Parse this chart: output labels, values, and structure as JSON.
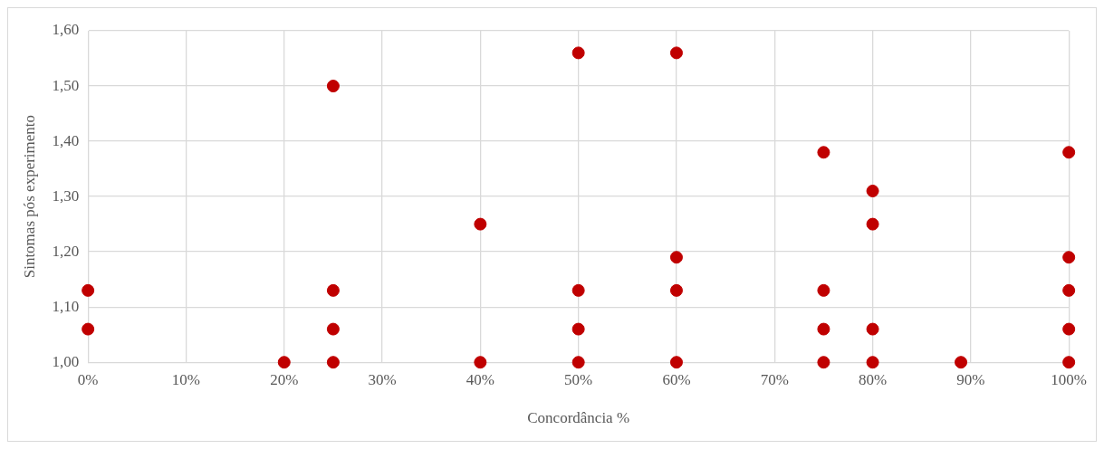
{
  "chart_data": {
    "type": "scatter",
    "xlabel": "Concordância %",
    "ylabel": "Sintomas pós experimento",
    "x": [
      0,
      0,
      20,
      25,
      25,
      25,
      25,
      40,
      40,
      50,
      50,
      50,
      50,
      60,
      60,
      60,
      60,
      75,
      75,
      75,
      75,
      80,
      80,
      80,
      80,
      89,
      100,
      100,
      100,
      100,
      100
    ],
    "series": [
      {
        "color": "#c00000",
        "values": [
          1.13,
          1.06,
          1.0,
          1.5,
          1.13,
          1.06,
          1.0,
          1.25,
          1.0,
          1.56,
          1.13,
          1.06,
          1.0,
          1.56,
          1.19,
          1.13,
          1.0,
          1.38,
          1.13,
          1.06,
          1.0,
          1.31,
          1.25,
          1.06,
          1.0,
          1.0,
          1.38,
          1.19,
          1.13,
          1.06,
          1.0
        ]
      }
    ],
    "xlim": [
      0,
      100
    ],
    "xticks": [
      {
        "value": 0,
        "label": "0%"
      },
      {
        "value": 10,
        "label": "10%"
      },
      {
        "value": 20,
        "label": "20%"
      },
      {
        "value": 30,
        "label": "30%"
      },
      {
        "value": 40,
        "label": "40%"
      },
      {
        "value": 50,
        "label": "50%"
      },
      {
        "value": 60,
        "label": "60%"
      },
      {
        "value": 70,
        "label": "70%"
      },
      {
        "value": 80,
        "label": "80%"
      },
      {
        "value": 90,
        "label": "90%"
      },
      {
        "value": 100,
        "label": "100%"
      }
    ],
    "ylim": [
      1.0,
      1.6
    ],
    "yticks": [
      {
        "value": 1.0,
        "label": "1,00"
      },
      {
        "value": 1.1,
        "label": "1,10"
      },
      {
        "value": 1.2,
        "label": "1,20"
      },
      {
        "value": 1.3,
        "label": "1,30"
      },
      {
        "value": 1.4,
        "label": "1,40"
      },
      {
        "value": 1.5,
        "label": "1,50"
      },
      {
        "value": 1.6,
        "label": "1,60"
      }
    ],
    "grid": true,
    "legend": false,
    "marker": "circle"
  }
}
